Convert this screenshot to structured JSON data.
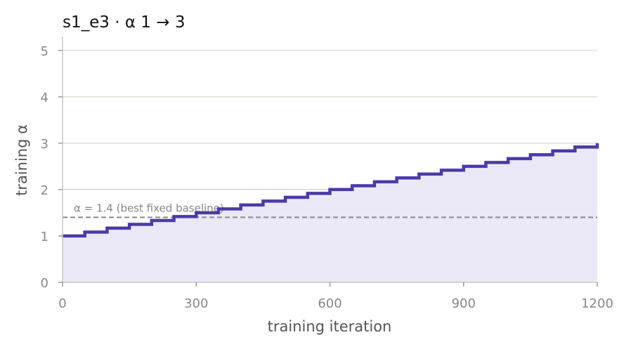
{
  "chart_data": {
    "type": "line",
    "title": "s1_e3   ·   α 1 → 3",
    "xlabel": "training iteration",
    "ylabel": "training α",
    "xlim": [
      0,
      1200
    ],
    "ylim": [
      0,
      5.3
    ],
    "xticks": [
      0,
      300,
      600,
      900,
      1200
    ],
    "yticks": [
      0,
      1,
      2,
      3,
      4,
      5
    ],
    "grid": "horizontal",
    "legend": "none",
    "series": [
      {
        "step": "post",
        "color": "#4b3aa8",
        "fill_color": "#ebe9f7",
        "x": [
          0,
          50,
          100,
          150,
          200,
          250,
          300,
          350,
          400,
          450,
          500,
          550,
          600,
          650,
          700,
          750,
          800,
          850,
          900,
          950,
          1000,
          1050,
          1100,
          1150,
          1200
        ],
        "y": [
          1.0,
          1.083,
          1.167,
          1.25,
          1.333,
          1.417,
          1.5,
          1.583,
          1.667,
          1.75,
          1.833,
          1.917,
          2.0,
          2.083,
          2.167,
          2.25,
          2.333,
          2.417,
          2.5,
          2.583,
          2.667,
          2.75,
          2.833,
          2.917,
          3.0
        ]
      }
    ],
    "reference_line": {
      "y": 1.4,
      "style": "dashed",
      "color": "#888888",
      "label": "α = 1.4 (best fixed baseline)"
    },
    "colors": {
      "grid_above": "#dfe3d2",
      "grid_below": "#d4d3dc",
      "axis": "#c8c8c0"
    }
  }
}
